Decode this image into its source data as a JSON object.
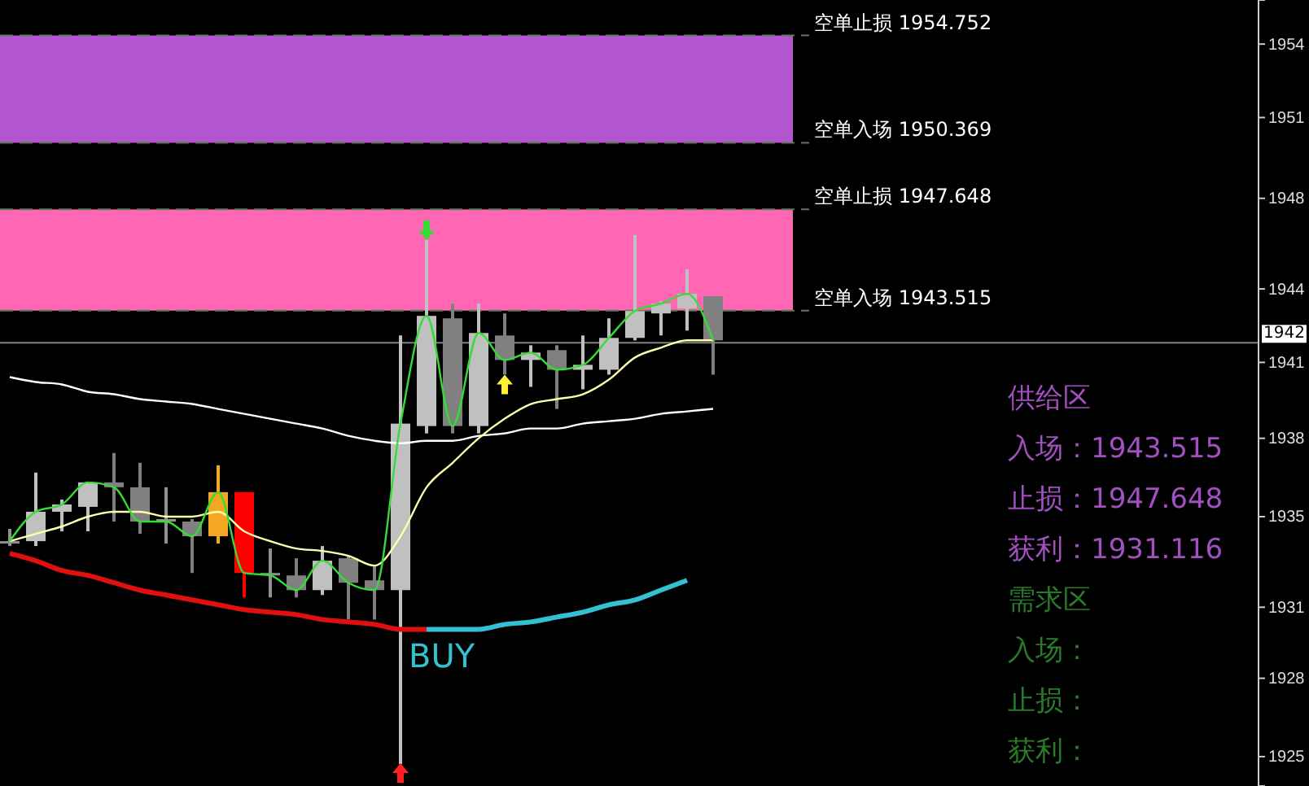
{
  "chart_data": {
    "type": "candlestick",
    "categories": [
      null,
      null,
      null,
      null,
      null,
      null,
      null,
      null,
      null,
      null,
      null,
      null,
      null,
      null,
      null,
      null,
      null,
      null,
      null,
      null,
      null,
      null,
      null,
      null,
      null,
      null,
      null,
      null
    ],
    "ohlc": [
      [
        1934.1,
        1934.6,
        1933.9,
        1934.1
      ],
      [
        1934.1,
        1936.9,
        1933.9,
        1935.3
      ],
      [
        1935.3,
        1935.8,
        1934.5,
        1935.6
      ],
      [
        1935.5,
        1936.5,
        1934.5,
        1936.5
      ],
      [
        1936.5,
        1937.7,
        1934.9,
        1936.3
      ],
      [
        1936.3,
        1937.3,
        1934.4,
        1934.9
      ],
      [
        1935.0,
        1936.3,
        1934.0,
        1934.9
      ],
      [
        1934.9,
        1935.0,
        1932.8,
        1934.3
      ],
      [
        1934.3,
        1937.2,
        1934.0,
        1936.1
      ],
      [
        1936.1,
        1936.1,
        1931.8,
        1932.8
      ],
      [
        1932.8,
        1933.8,
        1931.8,
        1932.7
      ],
      [
        1932.7,
        1933.4,
        1931.8,
        1932.1
      ],
      [
        1932.1,
        1933.9,
        1931.9,
        1933.3
      ],
      [
        1933.4,
        1933.5,
        1930.9,
        1932.4
      ],
      [
        1932.5,
        1933.1,
        1930.9,
        1932.1
      ],
      [
        1932.1,
        1942.5,
        1925.0,
        1938.9
      ],
      [
        1938.8,
        1946.4,
        1938.5,
        1943.3
      ],
      [
        1943.2,
        1943.8,
        1938.5,
        1938.8
      ],
      [
        1938.8,
        1943.8,
        1938.5,
        1942.6
      ],
      [
        1942.5,
        1943.4,
        1940.9,
        1941.5
      ],
      [
        1941.5,
        1942.1,
        1940.4,
        1941.8
      ],
      [
        1941.9,
        1942.1,
        1939.5,
        1941.1
      ],
      [
        1941.1,
        1942.5,
        1940.3,
        1941.3
      ],
      [
        1941.1,
        1943.2,
        1940.9,
        1942.4
      ],
      [
        1942.4,
        1946.6,
        1942.3,
        1943.5
      ],
      [
        1943.4,
        1943.9,
        1942.5,
        1943.8
      ],
      [
        1943.6,
        1945.2,
        1942.7,
        1944.2
      ],
      [
        1944.1,
        1944.1,
        1940.9,
        1942.3
      ]
    ],
    "colors": [
      "#909090",
      "#c0c0c0",
      "#c0c0c0",
      "#c0c0c0",
      "#808080",
      "#808080",
      "#909090",
      "#808080",
      "#f5a623",
      "#ff0000",
      "#909090",
      "#808080",
      "#c0c0c0",
      "#808080",
      "#808080",
      "#c0c0c0",
      "#c0c0c0",
      "#808080",
      "#c0c0c0",
      "#808080",
      "#c0c0c0",
      "#808080",
      "#c0c0c0",
      "#c0c0c0",
      "#c0c0c0",
      "#c0c0c0",
      "#c0c0c0",
      "#808080"
    ],
    "series": [
      {
        "type": "line",
        "color": "#ffffff",
        "values": [
          1940.8,
          1940.6,
          1940.5,
          1940.2,
          1940.1,
          1939.9,
          1939.8,
          1939.7,
          1939.5,
          1939.3,
          1939.1,
          1938.9,
          1938.7,
          1938.4,
          1938.2,
          1938.1,
          1938.2,
          1938.2,
          1938.4,
          1938.5,
          1938.7,
          1938.7,
          1938.9,
          1939.0,
          1939.1,
          1939.3,
          1939.4,
          1939.5
        ]
      },
      {
        "type": "line",
        "color": "#ffffaa",
        "values": [
          1934.1,
          1934.4,
          1934.7,
          1935.1,
          1935.3,
          1935.3,
          1935.1,
          1935.1,
          1935.3,
          1934.5,
          1934.1,
          1933.8,
          1933.7,
          1933.5,
          1933.1,
          1934.3,
          1936.3,
          1937.3,
          1938.3,
          1939.1,
          1939.7,
          1939.9,
          1940.1,
          1940.7,
          1941.6,
          1942.0,
          1942.3,
          1942.3
        ]
      },
      {
        "type": "line",
        "color": "#33dd33",
        "values": [
          1934.1,
          1935.3,
          1935.6,
          1936.5,
          1936.3,
          1934.9,
          1934.9,
          1934.3,
          1936.1,
          1932.8,
          1932.7,
          1932.1,
          1933.3,
          1932.4,
          1932.1,
          1938.9,
          1943.3,
          1938.8,
          1942.6,
          1941.5,
          1941.8,
          1941.1,
          1941.3,
          1942.4,
          1943.5,
          1943.8,
          1944.2,
          1942.3
        ]
      },
      {
        "type": "line",
        "color": "#e01010",
        "values": [
          1933.6,
          1933.3,
          1932.9,
          1932.7,
          1932.4,
          1932.1,
          1931.9,
          1931.7,
          1931.5,
          1931.3,
          1931.2,
          1931.1,
          1930.9,
          1930.8,
          1930.7,
          1930.5,
          1930.5,
          null,
          null,
          null,
          null,
          null,
          null,
          null,
          null,
          null,
          null,
          null
        ]
      },
      {
        "type": "line",
        "color": "#33c0d0",
        "values": [
          null,
          null,
          null,
          null,
          null,
          null,
          null,
          null,
          null,
          null,
          null,
          null,
          null,
          null,
          null,
          null,
          1930.5,
          1930.5,
          1930.5,
          1930.7,
          1930.8,
          1931.0,
          1931.2,
          1931.5,
          1931.7,
          1932.1,
          1932.5,
          null
        ]
      }
    ],
    "ylim": [
      1924.1,
      1956.2
    ],
    "yticks": [
      {
        "value": 1954.4,
        "label": "1954"
      },
      {
        "value": 1951.4,
        "label": "1951"
      },
      {
        "value": 1948.1,
        "label": "1948"
      },
      {
        "value": 1944.4,
        "label": "1944"
      },
      {
        "value": 1941.4,
        "label": "1941"
      },
      {
        "value": 1938.3,
        "label": "1938"
      },
      {
        "value": 1935.1,
        "label": "1935"
      },
      {
        "value": 1931.4,
        "label": "1931"
      },
      {
        "value": 1928.5,
        "label": "1928"
      },
      {
        "value": 1925.3,
        "label": "1925"
      }
    ],
    "bands": [
      {
        "axis": "y",
        "from": 1950.369,
        "to": 1954.752,
        "color": "#b455d0"
      },
      {
        "axis": "y",
        "from": 1943.515,
        "to": 1947.648,
        "color": "#ff66b4"
      }
    ],
    "ref_lines": [
      {
        "axis": "y",
        "value": 1954.752,
        "label": "空单止损 1954.752",
        "color": "#5a7a5a",
        "line_style": "dashed"
      },
      {
        "axis": "y",
        "value": 1950.369,
        "label": "空单入场 1950.369",
        "color": "#5a7a5a",
        "line_style": "dashed"
      },
      {
        "axis": "y",
        "value": 1947.648,
        "label": "空单止损 1947.648",
        "color": "#5a7a5a",
        "line_style": "dashed"
      },
      {
        "axis": "y",
        "value": 1943.515,
        "label": "空单入场 1943.515",
        "color": "#5a7a5a",
        "line_style": "dashed"
      },
      {
        "axis": "y",
        "value": 1942.2,
        "label": "1942",
        "color": "#808080",
        "line_style": "solid"
      }
    ],
    "annotations": [
      "BUY",
      "供给区",
      "入场：1943.515",
      "止损：1947.648",
      "获利：1931.116",
      "需求区",
      "入场：",
      "止损：",
      "获利："
    ]
  }
}
